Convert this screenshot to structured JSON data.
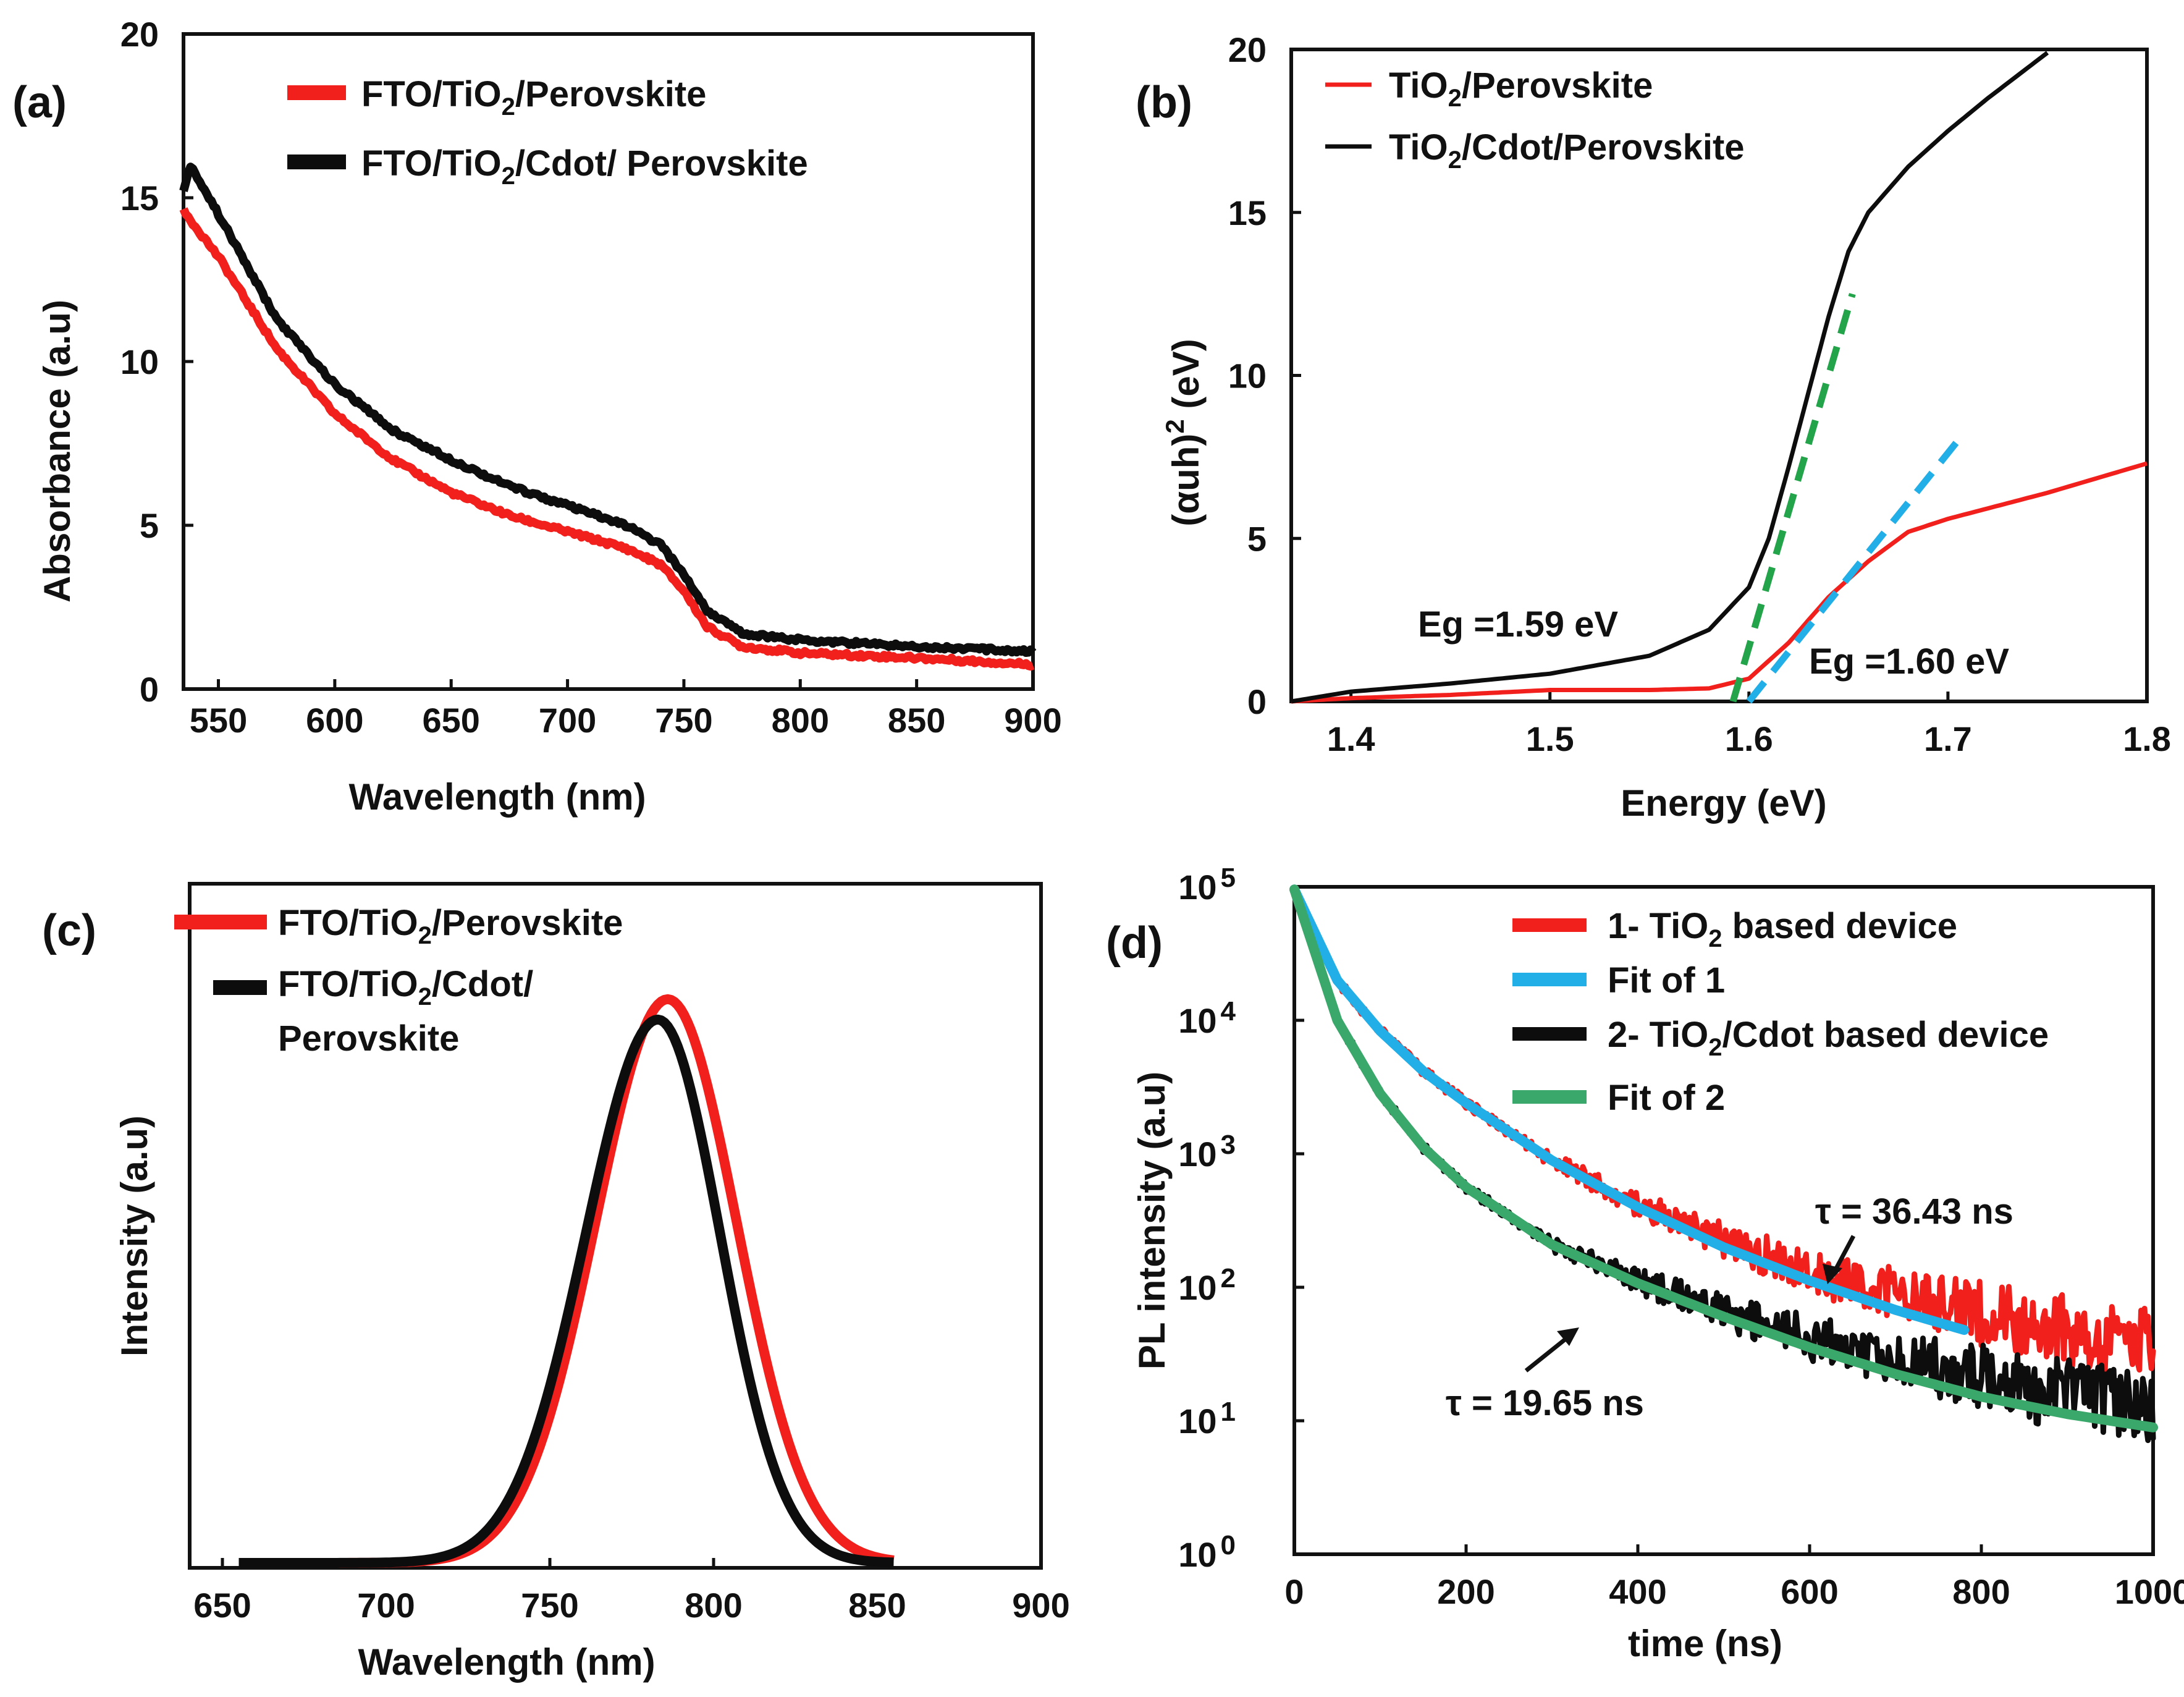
{
  "colors": {
    "red": "#f2201c",
    "black": "#0d0d0d",
    "blue": "#22aee6",
    "green": "#23a34a",
    "fit_green": "#3aa86a"
  },
  "chart_data": [
    {
      "panel": "(a)",
      "type": "line",
      "xlabel": "Wavelength (nm)",
      "ylabel": "Absorbance (a.u)",
      "xlim": [
        535,
        900
      ],
      "ylim": [
        0,
        20
      ],
      "xticks": [
        550,
        600,
        650,
        700,
        750,
        800,
        850,
        900
      ],
      "yticks": [
        0,
        5,
        10,
        15,
        20
      ],
      "legend": [
        {
          "pre": "FTO/TiO",
          "sub": "2",
          "post": "/Perovskite",
          "color": "red"
        },
        {
          "pre": "FTO/TiO",
          "sub": "2",
          "post": "/Cdot/  Perovskite",
          "color": "black"
        }
      ],
      "series": [
        {
          "name": "FTO/TiO2/Perovskite",
          "color": "red",
          "x": [
            535,
            550,
            575,
            600,
            625,
            650,
            675,
            700,
            725,
            740,
            750,
            760,
            775,
            800,
            850,
            900
          ],
          "y": [
            14.6,
            13.2,
            10.4,
            8.4,
            7.0,
            6.0,
            5.3,
            4.8,
            4.3,
            3.8,
            3.0,
            1.9,
            1.3,
            1.1,
            0.95,
            0.75
          ]
        },
        {
          "name": "FTO/TiO2/Cdot/ Perovskite",
          "color": "black",
          "x": [
            535,
            538,
            550,
            575,
            600,
            625,
            650,
            675,
            700,
            725,
            740,
            750,
            760,
            775,
            800,
            850,
            900
          ],
          "y": [
            15.2,
            16.0,
            14.5,
            11.3,
            9.3,
            7.9,
            7.0,
            6.2,
            5.6,
            5.0,
            4.4,
            3.5,
            2.4,
            1.7,
            1.5,
            1.3,
            1.15
          ]
        }
      ]
    },
    {
      "panel": "(b)",
      "type": "line",
      "xlabel": "Energy (eV)",
      "ylabel_pre": "(αuh)",
      "ylabel_sup": "2",
      "ylabel_post": " (eV)",
      "xlim": [
        1.37,
        1.8
      ],
      "ylim": [
        0,
        20
      ],
      "xticks": [
        1.4,
        1.5,
        1.6,
        1.7,
        1.8
      ],
      "yticks": [
        0,
        5,
        10,
        15,
        20
      ],
      "legend": [
        {
          "pre": "TiO",
          "sub": "2",
          "post": "/Perovskite",
          "color": "red"
        },
        {
          "pre": "TiO",
          "sub": "2",
          "post": "/Cdot/Perovskite",
          "color": "black"
        }
      ],
      "series": [
        {
          "name": "TiO2/Perovskite",
          "color": "red",
          "x": [
            1.37,
            1.4,
            1.45,
            1.5,
            1.55,
            1.58,
            1.6,
            1.62,
            1.64,
            1.66,
            1.68,
            1.7,
            1.75,
            1.8
          ],
          "y": [
            0.0,
            0.1,
            0.2,
            0.35,
            0.35,
            0.4,
            0.7,
            1.8,
            3.2,
            4.3,
            5.2,
            5.6,
            6.4,
            7.3
          ]
        },
        {
          "name": "TiO2/Cdot/Perovskite",
          "color": "black",
          "x": [
            1.37,
            1.4,
            1.45,
            1.5,
            1.55,
            1.58,
            1.6,
            1.61,
            1.62,
            1.63,
            1.64,
            1.65,
            1.66,
            1.68,
            1.7,
            1.72,
            1.75
          ],
          "y": [
            0.0,
            0.3,
            0.55,
            0.85,
            1.4,
            2.2,
            3.5,
            5.0,
            7.2,
            9.5,
            11.8,
            13.8,
            15.0,
            16.4,
            17.5,
            18.5,
            19.9
          ]
        }
      ],
      "fit_lines": [
        {
          "color": "green",
          "x": [
            1.592,
            1.652
          ],
          "y": [
            0,
            12.5
          ]
        },
        {
          "color": "blue",
          "x": [
            1.6,
            1.705
          ],
          "y": [
            0,
            8.0
          ]
        }
      ],
      "annotations": [
        "Eg =1.59 eV",
        "Eg =1.60 eV"
      ]
    },
    {
      "panel": "(c)",
      "type": "line",
      "xlabel": "Wavelength (nm)",
      "ylabel": "Intensity (a.u)",
      "xlim": [
        640,
        900
      ],
      "ylim": [
        0,
        1.0
      ],
      "xticks": [
        650,
        700,
        750,
        800,
        850,
        900
      ],
      "legend": [
        {
          "pre": "FTO/TiO",
          "sub": "2",
          "post": "/Perovskite",
          "color": "red"
        },
        {
          "pre": "FTO/TiO",
          "sub": "2",
          "post": "/Cdot/",
          "line2": "Perovskite",
          "color": "black"
        }
      ],
      "series": [
        {
          "name": "FTO/TiO2/Perovskite",
          "color": "red",
          "peak": 786,
          "amplitude": 0.83,
          "sigma_left": 22,
          "sigma_right": 21
        },
        {
          "name": "FTO/TiO2/Cdot/Perovskite",
          "color": "black",
          "peak": 783,
          "amplitude": 0.8,
          "sigma_left": 22,
          "sigma_right": 19
        }
      ]
    },
    {
      "panel": "(d)",
      "type": "line",
      "scale": "log",
      "xlabel": "time (ns)",
      "ylabel": "PL intensity (a.u)",
      "xlim": [
        0,
        1000
      ],
      "ylim_exponent": [
        0,
        5
      ],
      "xticks": [
        0,
        200,
        400,
        600,
        800,
        1000
      ],
      "yticks": [
        {
          "base": "10",
          "exp": "0"
        },
        {
          "base": "10",
          "exp": "1"
        },
        {
          "base": "10",
          "exp": "2"
        },
        {
          "base": "10",
          "exp": "3"
        },
        {
          "base": "10",
          "exp": "4"
        },
        {
          "base": "10",
          "exp": "5"
        }
      ],
      "legend": [
        {
          "pre": "1- TiO",
          "sub": "2",
          "post": " based device",
          "color": "red"
        },
        {
          "pre": "Fit of 1",
          "sub": "",
          "post": "",
          "color": "blue"
        },
        {
          "pre": "2- TiO",
          "sub": "2",
          "post": "/Cdot based device",
          "color": "black"
        },
        {
          "pre": "Fit of 2",
          "sub": "",
          "post": "",
          "color": "fit_green"
        }
      ],
      "series": [
        {
          "name": "1- TiO2 based device",
          "color": "red",
          "t": [
            0,
            50,
            100,
            150,
            200,
            300,
            400,
            500,
            600,
            700,
            800,
            900,
            1000
          ],
          "log10": [
            4.98,
            4.3,
            3.92,
            3.62,
            3.38,
            2.95,
            2.62,
            2.35,
            2.13,
            1.95,
            1.8,
            1.68,
            1.6
          ]
        },
        {
          "name": "Fit of 1",
          "color": "blue",
          "t": [
            0,
            50,
            100,
            150,
            200,
            300,
            400,
            500,
            600,
            700,
            780
          ],
          "log10": [
            4.98,
            4.3,
            3.92,
            3.62,
            3.38,
            2.95,
            2.6,
            2.3,
            2.05,
            1.83,
            1.68
          ]
        },
        {
          "name": "2- TiO2/Cdot based device",
          "color": "black",
          "t": [
            0,
            50,
            100,
            150,
            200,
            300,
            400,
            500,
            600,
            700,
            800,
            900,
            1000
          ],
          "log10": [
            4.98,
            4.0,
            3.45,
            3.05,
            2.75,
            2.32,
            2.05,
            1.82,
            1.62,
            1.45,
            1.32,
            1.2,
            1.1
          ]
        },
        {
          "name": "Fit of 2",
          "color": "fit_green",
          "t": [
            0,
            50,
            100,
            150,
            200,
            300,
            400,
            500,
            600,
            700,
            800,
            900,
            1000
          ],
          "log10": [
            4.98,
            4.0,
            3.45,
            3.05,
            2.75,
            2.32,
            2.03,
            1.78,
            1.55,
            1.35,
            1.18,
            1.05,
            0.95
          ]
        }
      ],
      "annotations": [
        "τ = 36.43 ns",
        "τ = 19.65 ns"
      ]
    }
  ]
}
